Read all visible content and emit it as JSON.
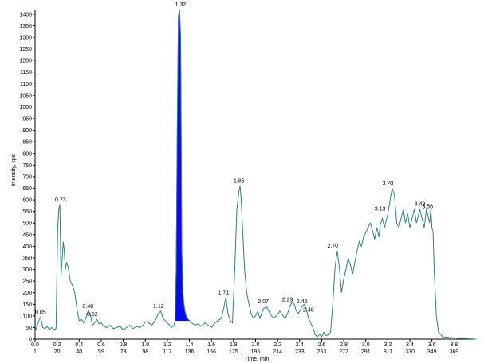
{
  "chart_data": {
    "type": "line",
    "title": "",
    "xlabel": "Time, min",
    "ylabel": "Intensity, cps",
    "xlim": [
      0.0,
      4.0
    ],
    "ylim": [
      0,
      1420
    ],
    "grid": false,
    "legend": "none",
    "colors": {
      "trace": "#2e7f7f",
      "highlight": "#0a0aee",
      "axis": "#000000"
    },
    "x_ticks": [
      0.0,
      0.2,
      0.4,
      0.6,
      0.8,
      1.0,
      1.2,
      1.4,
      1.6,
      1.8,
      2.0,
      2.2,
      2.4,
      2.6,
      2.8,
      3.0,
      3.2,
      3.4,
      3.6,
      3.8
    ],
    "x_tick_labels": [
      "0.0",
      "0.2",
      "0.4",
      "0.6",
      "0.8",
      "1.0",
      "1.2",
      "1.4",
      "1.6",
      "1.8",
      "2.0",
      "2.2",
      "2.4",
      "2.6",
      "2.8",
      "3.0",
      "3.2",
      "3.4",
      "3.6",
      "3.8"
    ],
    "scan_labels": [
      "1",
      "20",
      "40",
      "59",
      "78",
      "98",
      "117",
      "136",
      "156",
      "175",
      "195",
      "214",
      "233",
      "253",
      "272",
      "291",
      "311",
      "330",
      "349",
      "369"
    ],
    "y_ticks": [
      0,
      50,
      100,
      150,
      200,
      250,
      300,
      350,
      400,
      450,
      500,
      550,
      600,
      650,
      700,
      750,
      800,
      850,
      900,
      950,
      1000,
      1050,
      1100,
      1150,
      1200,
      1250,
      1300,
      1350,
      1400
    ],
    "y_tick_labels": [
      "0",
      "50",
      "100",
      "150",
      "200",
      "250",
      "300",
      "350",
      "400",
      "450",
      "500",
      "550",
      "600",
      "650",
      "700",
      "750",
      "800",
      "850",
      "900",
      "950",
      "1000",
      "1050",
      "1100",
      "1150",
      "1200",
      "1250",
      "1300",
      "1350",
      "1400"
    ],
    "series": [
      {
        "x": [
          0.0,
          0.02,
          0.04,
          0.05,
          0.07,
          0.09,
          0.11,
          0.13,
          0.15,
          0.17,
          0.19,
          0.205,
          0.215,
          0.225,
          0.235,
          0.245,
          0.255,
          0.265,
          0.275,
          0.285,
          0.3,
          0.32,
          0.34,
          0.36,
          0.38,
          0.4,
          0.42,
          0.44,
          0.46,
          0.48,
          0.5,
          0.52,
          0.54,
          0.56,
          0.58,
          0.6,
          0.62,
          0.65,
          0.68,
          0.71,
          0.74,
          0.77,
          0.8,
          0.83,
          0.86,
          0.89,
          0.92,
          0.95,
          0.98,
          1.0,
          1.03,
          1.06,
          1.09,
          1.12,
          1.14,
          1.16,
          1.18,
          1.2,
          1.22,
          1.24,
          1.26,
          1.27,
          1.28,
          1.29,
          1.3,
          1.31,
          1.32,
          1.325,
          1.33,
          1.34,
          1.35,
          1.36,
          1.37,
          1.38,
          1.4,
          1.42,
          1.45,
          1.48,
          1.51,
          1.54,
          1.57,
          1.6,
          1.63,
          1.66,
          1.69,
          1.71,
          1.73,
          1.75,
          1.77,
          1.79,
          1.81,
          1.83,
          1.85,
          1.86,
          1.87,
          1.88,
          1.89,
          1.9,
          1.92,
          1.94,
          1.96,
          1.98,
          2.0,
          2.02,
          2.04,
          2.07,
          2.1,
          2.13,
          2.16,
          2.19,
          2.22,
          2.25,
          2.27,
          2.29,
          2.31,
          2.33,
          2.35,
          2.37,
          2.39,
          2.42,
          2.44,
          2.46,
          2.48,
          2.5,
          2.52,
          2.54,
          2.56,
          2.58,
          2.6,
          2.62,
          2.64,
          2.66,
          2.68,
          2.7,
          2.72,
          2.74,
          2.76,
          2.78,
          2.8,
          2.82,
          2.84,
          2.86,
          2.88,
          2.9,
          2.92,
          2.94,
          2.96,
          2.98,
          3.0,
          3.02,
          3.04,
          3.06,
          3.08,
          3.1,
          3.12,
          3.13,
          3.15,
          3.17,
          3.18,
          3.2,
          3.22,
          3.24,
          3.26,
          3.28,
          3.3,
          3.32,
          3.34,
          3.36,
          3.38,
          3.4,
          3.42,
          3.44,
          3.46,
          3.48,
          3.49,
          3.51,
          3.53,
          3.55,
          3.56,
          3.58,
          3.59,
          3.6,
          3.61,
          3.62,
          3.64,
          3.66,
          3.7,
          3.8,
          4.0
        ],
        "y": [
          30,
          60,
          85,
          95,
          50,
          45,
          55,
          40,
          50,
          42,
          45,
          470,
          560,
          580,
          270,
          340,
          420,
          380,
          300,
          330,
          310,
          250,
          230,
          200,
          130,
          80,
          85,
          70,
          90,
          120,
          110,
          60,
          70,
          85,
          65,
          70,
          55,
          50,
          60,
          45,
          50,
          55,
          40,
          50,
          60,
          45,
          55,
          50,
          60,
          75,
          70,
          60,
          80,
          110,
          120,
          90,
          80,
          70,
          60,
          50,
          60,
          80,
          300,
          900,
          1390,
          1420,
          1300,
          900,
          400,
          200,
          150,
          120,
          100,
          90,
          80,
          70,
          60,
          65,
          55,
          70,
          60,
          50,
          70,
          80,
          90,
          130,
          180,
          110,
          80,
          70,
          280,
          560,
          640,
          660,
          600,
          500,
          400,
          300,
          200,
          150,
          110,
          90,
          100,
          120,
          90,
          130,
          140,
          110,
          90,
          100,
          120,
          100,
          90,
          110,
          140,
          160,
          150,
          120,
          110,
          140,
          150,
          130,
          90,
          70,
          50,
          20,
          10,
          20,
          10,
          30,
          15,
          20,
          30,
          150,
          300,
          380,
          310,
          200,
          260,
          300,
          350,
          320,
          280,
          330,
          380,
          420,
          400,
          440,
          460,
          480,
          500,
          470,
          430,
          480,
          440,
          490,
          520,
          480,
          500,
          540,
          600,
          650,
          620,
          500,
          480,
          520,
          560,
          500,
          540,
          480,
          520,
          560,
          500,
          540,
          560,
          520,
          480,
          560,
          540,
          500,
          560,
          480,
          460,
          300,
          100,
          30,
          10,
          5,
          0
        ]
      }
    ],
    "peak_labels": [
      {
        "text": "0.05",
        "x": 0.05,
        "y": 95
      },
      {
        "text": "0.23",
        "x": 0.23,
        "y": 580
      },
      {
        "text": "0.48",
        "x": 0.48,
        "y": 120
      },
      {
        "text": "0.52",
        "x": 0.52,
        "y": 85
      },
      {
        "text": "1.12",
        "x": 1.12,
        "y": 120
      },
      {
        "text": "1.32",
        "x": 1.32,
        "y": 1420
      },
      {
        "text": "1.71",
        "x": 1.71,
        "y": 180
      },
      {
        "text": "1.85",
        "x": 1.85,
        "y": 660
      },
      {
        "text": "2.07",
        "x": 2.07,
        "y": 140
      },
      {
        "text": "2.29",
        "x": 2.29,
        "y": 150
      },
      {
        "text": "2.42",
        "x": 2.42,
        "y": 140
      },
      {
        "text": "2.48",
        "x": 2.48,
        "y": 105
      },
      {
        "text": "2.70",
        "x": 2.7,
        "y": 380
      },
      {
        "text": "3.13",
        "x": 3.13,
        "y": 540
      },
      {
        "text": "3.20",
        "x": 3.2,
        "y": 650
      },
      {
        "text": "3.49",
        "x": 3.49,
        "y": 560
      },
      {
        "text": "3.56",
        "x": 3.56,
        "y": 550
      }
    ],
    "highlighted_region": {
      "x_start": 1.27,
      "x_end": 1.4,
      "label": "1.32"
    }
  }
}
